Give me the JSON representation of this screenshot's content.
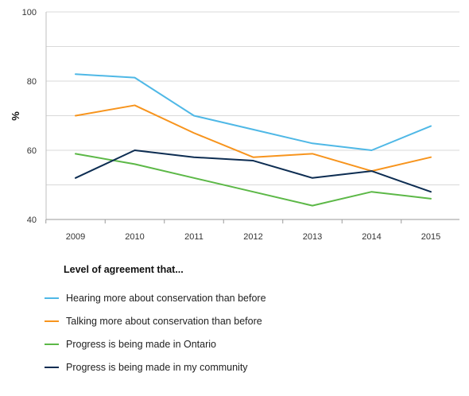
{
  "chart_data": {
    "type": "line",
    "x": [
      "2009",
      "2010",
      "2011",
      "2012",
      "2013",
      "2014",
      "2015"
    ],
    "ylabel": "%",
    "ylim": [
      40,
      100
    ],
    "yticks": [
      "40",
      "60",
      "80",
      "100"
    ],
    "grid": true,
    "legend_title": "Level of agreement that...",
    "legend_placement": "bottom",
    "series": [
      {
        "name": "Hearing more about conservation than before",
        "color": "#4fb8e6",
        "values": [
          82,
          81,
          70,
          66,
          62,
          60,
          67
        ]
      },
      {
        "name": "Talking more about conservation than before",
        "color": "#f7941d",
        "values": [
          70,
          73,
          65,
          58,
          59,
          54,
          58
        ]
      },
      {
        "name": "Progress is being made in Ontario",
        "color": "#5cb847",
        "values": [
          59,
          56,
          52,
          48,
          44,
          48,
          46
        ]
      },
      {
        "name": "Progress is being made in my community",
        "color": "#0d2d52",
        "values": [
          52,
          60,
          58,
          57,
          52,
          54,
          48
        ]
      }
    ]
  }
}
